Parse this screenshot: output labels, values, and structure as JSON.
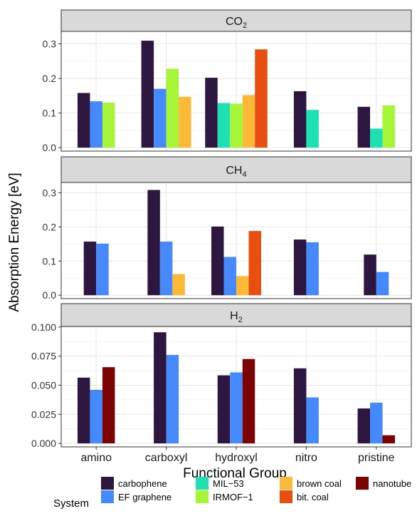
{
  "chart_data": {
    "type": "bar",
    "ylabel": "Absorption Energy [eV]",
    "xlabel": "Functional Group",
    "categories": [
      "amino",
      "carboxyl",
      "hydroxyl",
      "nitro",
      "pristine"
    ],
    "legend": {
      "title": "System",
      "position": "bottom",
      "entries": [
        {
          "name": "carbophene",
          "color": "#2d1741"
        },
        {
          "name": "EF graphene",
          "color": "#4689fb"
        },
        {
          "name": "MIL−53",
          "color": "#1fe0b4"
        },
        {
          "name": "IRMOF−1",
          "color": "#a6f539"
        },
        {
          "name": "brown coal",
          "color": "#fbb937"
        },
        {
          "name": "bit. coal",
          "color": "#e84e10"
        },
        {
          "name": "nanotube",
          "color": "#7b0403"
        }
      ]
    },
    "panels": [
      {
        "strip": "CO",
        "strip_sub": "2",
        "ylim": [
          -0.01,
          0.336
        ],
        "ticks": [
          0.0,
          0.1,
          0.2,
          0.3
        ],
        "tick_labels": [
          "0.0",
          "0.1",
          "0.2",
          "0.3"
        ],
        "groups": [
          {
            "category": "amino",
            "bars": [
              {
                "s": "carbophene",
                "v": 0.158
              },
              {
                "s": "EF graphene",
                "v": 0.134
              },
              {
                "s": "IRMOF−1",
                "v": 0.13
              }
            ]
          },
          {
            "category": "carboxyl",
            "bars": [
              {
                "s": "carbophene",
                "v": 0.309
              },
              {
                "s": "EF graphene",
                "v": 0.17
              },
              {
                "s": "IRMOF−1",
                "v": 0.228
              },
              {
                "s": "brown coal",
                "v": 0.147
              }
            ]
          },
          {
            "category": "hydroxyl",
            "bars": [
              {
                "s": "carbophene",
                "v": 0.202
              },
              {
                "s": "MIL−53",
                "v": 0.129
              },
              {
                "s": "IRMOF−1",
                "v": 0.127
              },
              {
                "s": "brown coal",
                "v": 0.152
              },
              {
                "s": "bit. coal",
                "v": 0.284
              }
            ]
          },
          {
            "category": "nitro",
            "bars": [
              {
                "s": "carbophene",
                "v": 0.163
              },
              {
                "s": "MIL−53",
                "v": 0.109
              }
            ]
          },
          {
            "category": "pristine",
            "bars": [
              {
                "s": "carbophene",
                "v": 0.118
              },
              {
                "s": "MIL−53",
                "v": 0.055
              },
              {
                "s": "IRMOF−1",
                "v": 0.122
              }
            ]
          }
        ]
      },
      {
        "strip": "CH",
        "strip_sub": "4",
        "ylim": [
          -0.01,
          0.33
        ],
        "ticks": [
          0.0,
          0.1,
          0.2,
          0.3
        ],
        "tick_labels": [
          "0.0",
          "0.1",
          "0.2",
          "0.3"
        ],
        "groups": [
          {
            "category": "amino",
            "bars": [
              {
                "s": "carbophene",
                "v": 0.157
              },
              {
                "s": "EF graphene",
                "v": 0.151
              }
            ]
          },
          {
            "category": "carboxyl",
            "bars": [
              {
                "s": "carbophene",
                "v": 0.308
              },
              {
                "s": "EF graphene",
                "v": 0.157
              },
              {
                "s": "brown coal",
                "v": 0.062
              }
            ]
          },
          {
            "category": "hydroxyl",
            "bars": [
              {
                "s": "carbophene",
                "v": 0.201
              },
              {
                "s": "EF graphene",
                "v": 0.112
              },
              {
                "s": "brown coal",
                "v": 0.056
              },
              {
                "s": "bit. coal",
                "v": 0.188
              }
            ]
          },
          {
            "category": "nitro",
            "bars": [
              {
                "s": "carbophene",
                "v": 0.163
              },
              {
                "s": "EF graphene",
                "v": 0.155
              }
            ]
          },
          {
            "category": "pristine",
            "bars": [
              {
                "s": "carbophene",
                "v": 0.119
              },
              {
                "s": "EF graphene",
                "v": 0.068
              }
            ]
          }
        ]
      },
      {
        "strip": "H",
        "strip_sub": "2",
        "ylim": [
          -0.003,
          0.1005
        ],
        "ticks": [
          0.0,
          0.025,
          0.05,
          0.075,
          0.1
        ],
        "tick_labels": [
          "0.000",
          "0.025",
          "0.050",
          "0.075",
          "0.100"
        ],
        "groups": [
          {
            "category": "amino",
            "bars": [
              {
                "s": "carbophene",
                "v": 0.0565
              },
              {
                "s": "EF graphene",
                "v": 0.046
              },
              {
                "s": "nanotube",
                "v": 0.0655
              }
            ]
          },
          {
            "category": "carboxyl",
            "bars": [
              {
                "s": "carbophene",
                "v": 0.0955
              },
              {
                "s": "EF graphene",
                "v": 0.076
              }
            ]
          },
          {
            "category": "hydroxyl",
            "bars": [
              {
                "s": "carbophene",
                "v": 0.0585
              },
              {
                "s": "EF graphene",
                "v": 0.061
              },
              {
                "s": "nanotube",
                "v": 0.0725
              }
            ]
          },
          {
            "category": "nitro",
            "bars": [
              {
                "s": "carbophene",
                "v": 0.0645
              },
              {
                "s": "EF graphene",
                "v": 0.0395
              }
            ]
          },
          {
            "category": "pristine",
            "bars": [
              {
                "s": "carbophene",
                "v": 0.03
              },
              {
                "s": "EF graphene",
                "v": 0.035
              },
              {
                "s": "nanotube",
                "v": 0.007
              }
            ]
          }
        ]
      }
    ]
  }
}
